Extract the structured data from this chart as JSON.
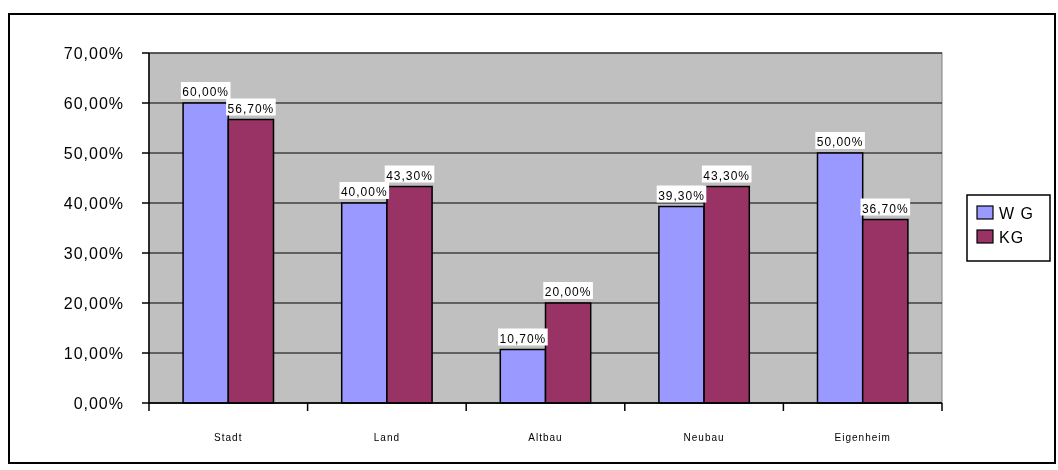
{
  "chart_data": {
    "type": "bar",
    "categories": [
      "Stadt",
      "Land",
      "Altbau",
      "Neubau",
      "Eigenheim"
    ],
    "series": [
      {
        "name": "W G",
        "color": "#9999ff",
        "values": [
          60,
          40,
          10.7,
          39.3,
          50
        ],
        "value_labels": [
          "60,00%",
          "40,00%",
          "10,70%",
          "39,30%",
          "50,00%"
        ]
      },
      {
        "name": "KG",
        "color": "#993366",
        "values": [
          56.7,
          43.3,
          20,
          43.3,
          36.7
        ],
        "value_labels": [
          "56,70%",
          "43,30%",
          "20,00%",
          "43,30%",
          "36,70%"
        ]
      }
    ],
    "ylim": [
      0,
      70
    ],
    "yticks": [
      {
        "value": 0,
        "label": "0,00%"
      },
      {
        "value": 10,
        "label": "10,00%"
      },
      {
        "value": 20,
        "label": "20,00%"
      },
      {
        "value": 30,
        "label": "30,00%"
      },
      {
        "value": 40,
        "label": "40,00%"
      },
      {
        "value": 50,
        "label": "50,00%"
      },
      {
        "value": 60,
        "label": "60,00%"
      },
      {
        "value": 70,
        "label": "70,00%"
      }
    ],
    "grid": "y",
    "legend": "right"
  }
}
